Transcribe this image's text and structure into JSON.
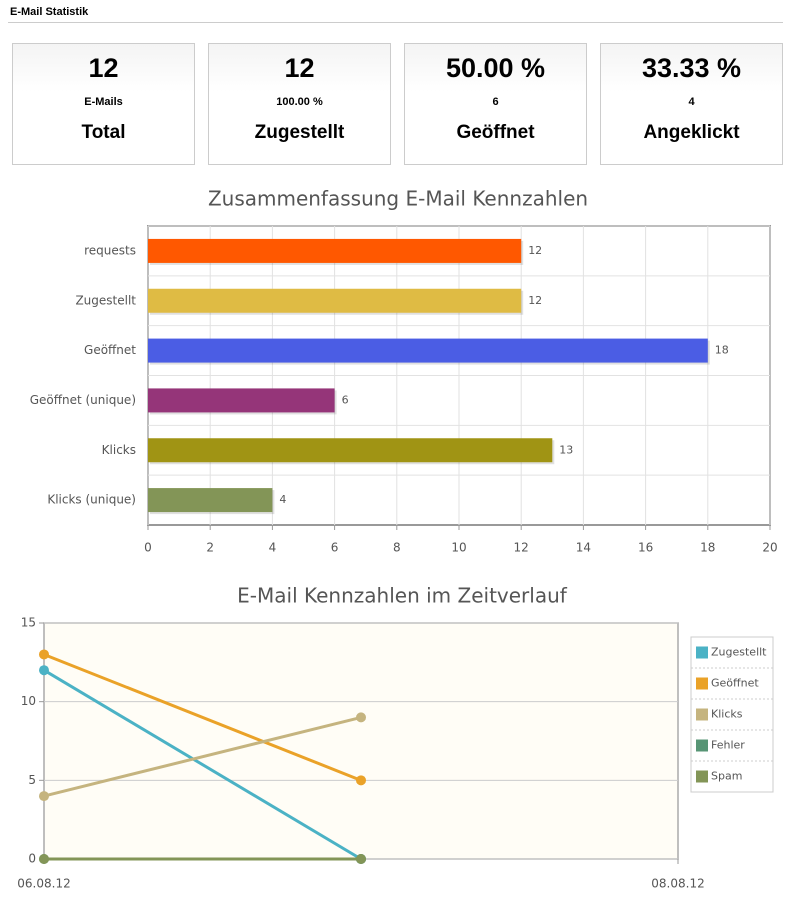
{
  "header": {
    "title": "E-Mail Statistik"
  },
  "cards": [
    {
      "value": "12",
      "sub": "E-Mails",
      "label": "Total"
    },
    {
      "value": "12",
      "sub": "100.00 %",
      "label": "Zugestellt"
    },
    {
      "value": "50.00 %",
      "sub": "6",
      "label": "Geöffnet"
    },
    {
      "value": "33.33 %",
      "sub": "4",
      "label": "Angeklickt"
    }
  ],
  "chart_data": [
    {
      "type": "hbar",
      "title": "Zusammenfassung E-Mail Kennzahlen",
      "categories": [
        "requests",
        "Zugestellt",
        "Geöffnet",
        "Geöffnet (unique)",
        "Klicks",
        "Klicks (unique)"
      ],
      "values": [
        12,
        12,
        18,
        6,
        13,
        4
      ],
      "colors": [
        "#ff5800",
        "#dfbb44",
        "#4b5de4",
        "#953579",
        "#a09414",
        "#839557"
      ],
      "xlim": [
        0,
        20
      ],
      "xticks": [
        0,
        2,
        4,
        6,
        8,
        10,
        12,
        14,
        16,
        18,
        20
      ],
      "grid": true
    },
    {
      "type": "line",
      "title": "E-Mail Kennzahlen im Zeitverlauf",
      "x": [
        0,
        1
      ],
      "xlim": [
        0,
        2
      ],
      "xticks": [
        {
          "value": 0,
          "label": "06.08.12"
        },
        {
          "value": 2,
          "label": "08.08.12"
        }
      ],
      "ylim": [
        0,
        15
      ],
      "yticks": [
        0,
        5,
        10,
        15
      ],
      "grid": true,
      "legend": "right",
      "series": [
        {
          "name": "Zugestellt",
          "color": "#4bb2c5",
          "values": [
            12,
            0
          ]
        },
        {
          "name": "Geöffnet",
          "color": "#eaa228",
          "values": [
            13,
            5
          ]
        },
        {
          "name": "Klicks",
          "color": "#c5b47f",
          "values": [
            4,
            9
          ]
        },
        {
          "name": "Fehler",
          "color": "#579575",
          "values": [
            0,
            0
          ]
        },
        {
          "name": "Spam",
          "color": "#839557",
          "values": [
            0,
            0
          ]
        }
      ]
    }
  ]
}
